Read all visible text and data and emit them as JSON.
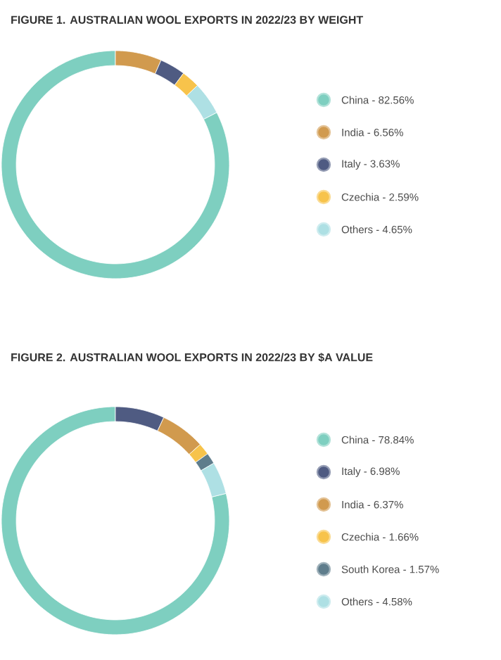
{
  "chart_data": [
    {
      "type": "donut",
      "title": "FIGURE 1. AUSTRALIAN WOOL EXPORTS IN 2022/23 BY WEIGHT",
      "categories": [
        "China - 82.56%",
        "India - 6.56%",
        "Italy - 3.63%",
        "Czechia - 2.59%",
        "Others - 4.65%"
      ],
      "values": [
        82.56,
        6.56,
        3.63,
        2.59,
        4.65
      ],
      "colors": [
        "#7ecfc0",
        "#d19a4e",
        "#4f5b82",
        "#f7c34b",
        "#aee0e4"
      ],
      "legend": "right"
    },
    {
      "type": "donut",
      "title": "FIGURE 2. AUSTRALIAN WOOL EXPORTS IN 2022/23 BY $A VALUE",
      "categories": [
        "China - 78.84%",
        "Italy - 6.98%",
        "India - 6.37%",
        "Czechia - 1.66%",
        "South Korea - 1.57%",
        "Others - 4.58%"
      ],
      "values": [
        78.84,
        6.98,
        6.37,
        1.66,
        1.57,
        4.58
      ],
      "colors": [
        "#7ecfc0",
        "#4f5b82",
        "#d19a4e",
        "#f7c34b",
        "#5f7d8c",
        "#aee0e4"
      ],
      "legend": "right"
    }
  ]
}
